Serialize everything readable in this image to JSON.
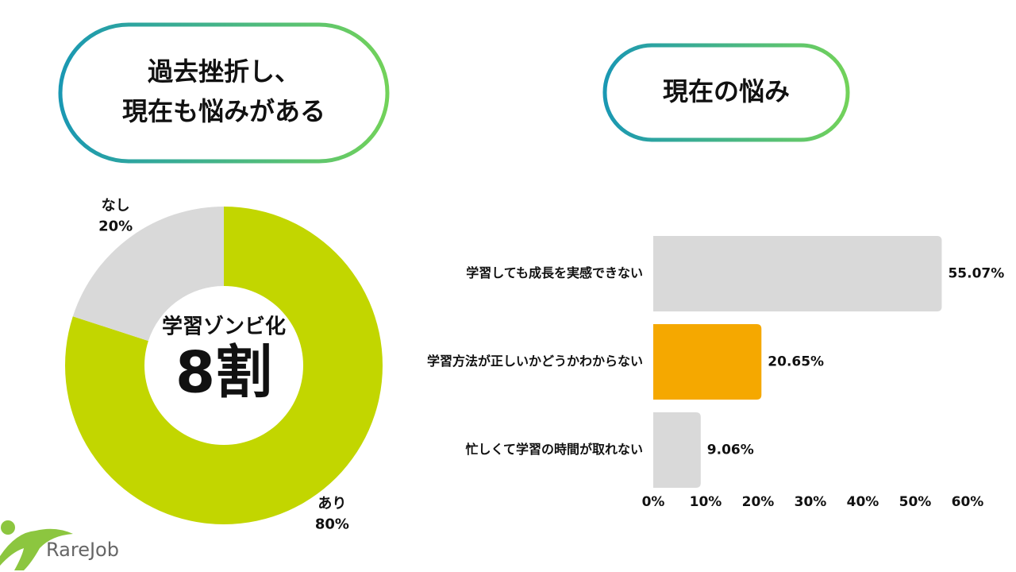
{
  "chart_data": [
    {
      "type": "pie",
      "title": [
        "過去挫折し、",
        "現在も悩みがある"
      ],
      "annotations": [
        "学習ゾンビ化",
        "8割"
      ],
      "categories": [
        "あり",
        "なし"
      ],
      "values": [
        80,
        20
      ],
      "value_labels": [
        "80%",
        "20%"
      ],
      "colors": [
        "#c2d600",
        "#d9d9d9"
      ]
    },
    {
      "type": "hbar",
      "title": "現在の悩み",
      "categories": [
        "学習しても成長を実感できない",
        "学習方法が正しいかどうかわからない",
        "忙しくて学習の時間が取れない"
      ],
      "values": [
        55.07,
        20.65,
        9.06
      ],
      "value_labels": [
        "55.07%",
        "20.65%",
        "9.06%"
      ],
      "colors": [
        "#d9d9d9",
        "#f5a800",
        "#d9d9d9"
      ],
      "xlim": [
        0,
        60
      ],
      "xticks": [
        {
          "value": 0,
          "label": "0%"
        },
        {
          "value": 10,
          "label": "10%"
        },
        {
          "value": 20,
          "label": "20%"
        },
        {
          "value": 30,
          "label": "30%"
        },
        {
          "value": 40,
          "label": "40%"
        },
        {
          "value": 50,
          "label": "50%"
        },
        {
          "value": 60,
          "label": "60%"
        }
      ]
    }
  ],
  "logo": "RareJob"
}
